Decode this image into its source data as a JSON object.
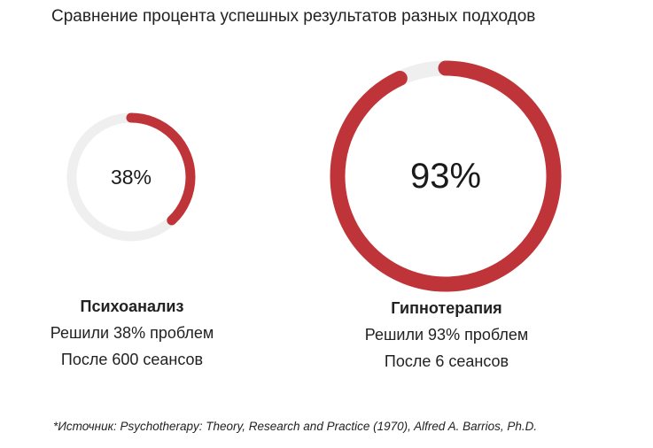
{
  "title": "Сравнение процента успешных результатов разных подходов",
  "colors": {
    "arc": "#bf3439",
    "track": "#efefef",
    "text": "#1a1a1a"
  },
  "chart_data": {
    "type": "pie",
    "variant": "donut",
    "title": "Сравнение процента успешных результатов разных подходов",
    "series": [
      {
        "name": "Психоанализ",
        "value": 38,
        "label": "38%",
        "line1": "Решили 38% проблем",
        "line2": "После 600 сеансов"
      },
      {
        "name": "Гипнотерапия",
        "value": 93,
        "label": "93%",
        "line1": "Решили 93% проблем",
        "line2": "После 6 сеансов"
      }
    ],
    "max": 100
  },
  "source": "*Источник: Psychotherapy: Theory, Research and Practice (1970), Alfred A. Barrios, Ph.D."
}
